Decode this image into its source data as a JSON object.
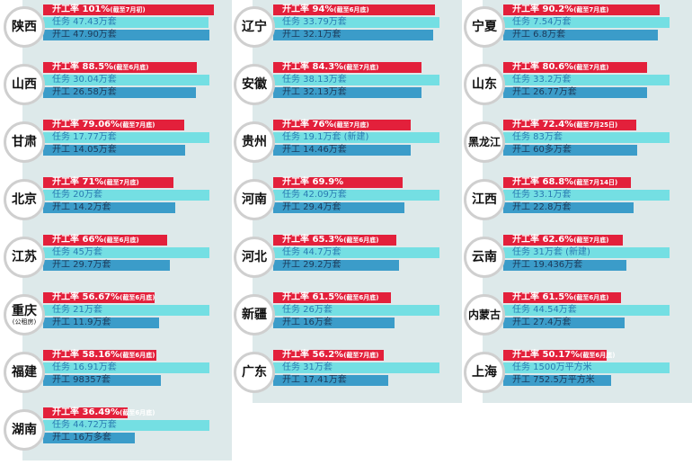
{
  "chart_data": {
    "type": "bar",
    "series_names": [
      "开工率",
      "任务",
      "开工"
    ],
    "colors": {
      "rate": "#e3203b",
      "task": "#74dfe3",
      "started": "#3b9cc9"
    },
    "provinces": [
      {
        "name": "陕西",
        "rate": "开工率 101%",
        "note": "(截至7月初)",
        "task": "任务 47.43万套",
        "started": "开工 47.90万套",
        "rate_value": 101,
        "task_value": 47.43,
        "started_value": 47.9
      },
      {
        "name": "辽宁",
        "rate": "开工率 94%",
        "note": "(截至6月底)",
        "task": "任务 33.79万套",
        "started": "开工 32.1万套",
        "rate_value": 94,
        "task_value": 33.79,
        "started_value": 32.1
      },
      {
        "name": "宁夏",
        "rate": "开工率 90.2%",
        "note": "(截至7月底)",
        "task": "任务 7.54万套",
        "started": "开工 6.8万套",
        "rate_value": 90.2,
        "task_value": 7.54,
        "started_value": 6.8
      },
      {
        "name": "山西",
        "rate": "开工率 88.5%",
        "note": "(截至6月底)",
        "task": "任务 30.04万套",
        "started": "开工 26.58万套",
        "rate_value": 88.5,
        "task_value": 30.04,
        "started_value": 26.58
      },
      {
        "name": "安徽",
        "rate": "开工率 84.3%",
        "note": "(截至7月底)",
        "task": "任务 38.13万套",
        "started": "开工 32.13万套",
        "rate_value": 84.3,
        "task_value": 38.13,
        "started_value": 32.13
      },
      {
        "name": "山东",
        "rate": "开工率 80.6%",
        "note": "(截至7月底)",
        "task": "任务 33.2万套",
        "started": "开工 26.77万套",
        "rate_value": 80.6,
        "task_value": 33.2,
        "started_value": 26.77
      },
      {
        "name": "甘肃",
        "rate": "开工率 79.06%",
        "note": "(截至7月底)",
        "task": "任务 17.77万套",
        "started": "开工 14.05万套",
        "rate_value": 79.06,
        "task_value": 17.77,
        "started_value": 14.05
      },
      {
        "name": "贵州",
        "rate": "开工率 76%",
        "note": "(截至7月底)",
        "task": "任务 19.1万套 (新建)",
        "started": "开工 14.46万套",
        "rate_value": 76,
        "task_value": 19.1,
        "started_value": 14.46
      },
      {
        "name": "黑龙江",
        "rate": "开工率 72.4%",
        "note": "(截至7月25日)",
        "task": "任务 83万套",
        "started": "开工 60多万套",
        "rate_value": 72.4,
        "task_value": 83,
        "started_value": 60
      },
      {
        "name": "北京",
        "rate": "开工率 71%",
        "note": "(截至7月底)",
        "task": "任务 20万套",
        "started": "开工 14.2万套",
        "rate_value": 71,
        "task_value": 20,
        "started_value": 14.2
      },
      {
        "name": "河南",
        "rate": "开工率 69.9%",
        "note": "",
        "task": "任务 42.09万套",
        "started": "开工 29.4万套",
        "rate_value": 69.9,
        "task_value": 42.09,
        "started_value": 29.4
      },
      {
        "name": "江西",
        "rate": "开工率 68.8%",
        "note": "(截至7月14日)",
        "task": "任务 33.1万套",
        "started": "开工 22.8万套",
        "rate_value": 68.8,
        "task_value": 33.1,
        "started_value": 22.8
      },
      {
        "name": "江苏",
        "rate": "开工率 66%",
        "note": "(截至6月底)",
        "task": "任务 45万套",
        "started": "开工 29.7万套",
        "rate_value": 66,
        "task_value": 45,
        "started_value": 29.7
      },
      {
        "name": "河北",
        "rate": "开工率 65.3%",
        "note": "(截至6月底)",
        "task": "任务 44.7万套",
        "started": "开工 29.2万套",
        "rate_value": 65.3,
        "task_value": 44.7,
        "started_value": 29.2
      },
      {
        "name": "云南",
        "rate": "开工率 62.6%",
        "note": "(截至7月底)",
        "task": "任务 31万套 (新建)",
        "started": "开工 19.436万套",
        "rate_value": 62.6,
        "task_value": 31,
        "started_value": 19.436
      },
      {
        "name": "重庆",
        "sub": "(公租房)",
        "rate": "开工率 56.67%",
        "note": "(截至6月底)",
        "task": "任务 21万套",
        "started": "开工 11.9万套",
        "rate_value": 56.67,
        "task_value": 21,
        "started_value": 11.9
      },
      {
        "name": "新疆",
        "rate": "开工率 61.5%",
        "note": "(截至6月底)",
        "task": "任务 26万套",
        "started": "开工 16万套",
        "rate_value": 61.5,
        "task_value": 26,
        "started_value": 16
      },
      {
        "name": "内蒙古",
        "rate": "开工率 61.5%",
        "note": "(截至6月底)",
        "task": "任务 44.54万套",
        "started": "开工 27.4万套",
        "rate_value": 61.5,
        "task_value": 44.54,
        "started_value": 27.4
      },
      {
        "name": "福建",
        "rate": "开工率 58.16%",
        "note": "(截至6月底)",
        "task": "任务 16.91万套",
        "started": "开工 98357套",
        "rate_value": 58.16,
        "task_value": 16.91,
        "started_value": 9.8357
      },
      {
        "name": "广东",
        "rate": "开工率 56.2%",
        "note": "(截至7月底)",
        "task": "任务 31万套",
        "started": "开工 17.41万套",
        "rate_value": 56.2,
        "task_value": 31,
        "started_value": 17.41
      },
      {
        "name": "上海",
        "rate": "开工率 50.17%",
        "note": "(截至6月底)",
        "task": "任务 1500万平方米",
        "started": "开工 752.5万平方米",
        "rate_value": 50.17,
        "task_value": 1500,
        "started_value": 752.5
      },
      {
        "name": "湖南",
        "rate": "开工率 36.49%",
        "note": "(截至6月底)",
        "task": "任务 44.72万套",
        "started": "开工 16万多套",
        "rate_value": 36.49,
        "task_value": 44.72,
        "started_value": 16
      }
    ]
  }
}
